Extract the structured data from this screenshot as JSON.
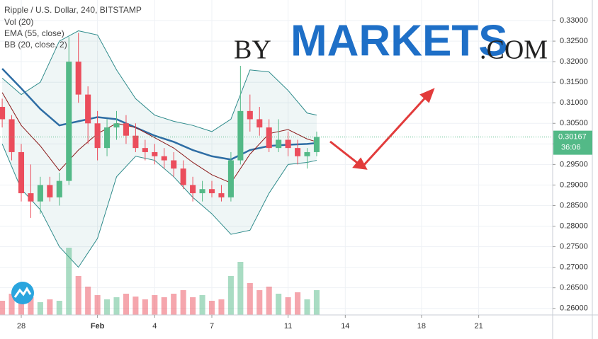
{
  "chart_data": {
    "type": "candlestick",
    "title": "Ripple / U.S. Dollar, 240, BITSTAMP",
    "indicators": [
      "Vol (20)",
      "EMA (55, close)",
      "BB (20, close, 2)"
    ],
    "watermark": {
      "prefix": "BY",
      "main": "MARKETS",
      "suffix": ".COM"
    },
    "xlim": [
      -1.115,
      27.88
    ],
    "ylim": [
      0.2584,
      0.335
    ],
    "vlim": [
      0,
      110
    ],
    "xticks": [
      {
        "value": 0,
        "label": "28"
      },
      {
        "value": 4,
        "label": "Feb"
      },
      {
        "value": 7,
        "label": "4"
      },
      {
        "value": 10,
        "label": "7"
      },
      {
        "value": 14,
        "label": "11"
      },
      {
        "value": 17,
        "label": "14"
      },
      {
        "value": 21,
        "label": "18"
      },
      {
        "value": 24,
        "label": "21"
      }
    ],
    "yticks": [
      {
        "value": 0.26,
        "label": "0.26000"
      },
      {
        "value": 0.265,
        "label": "0.26500"
      },
      {
        "value": 0.27,
        "label": "0.27000"
      },
      {
        "value": 0.275,
        "label": "0.27500"
      },
      {
        "value": 0.28,
        "label": "0.28000"
      },
      {
        "value": 0.285,
        "label": "0.28500"
      },
      {
        "value": 0.29,
        "label": "0.29000"
      },
      {
        "value": 0.295,
        "label": "0.29500"
      },
      {
        "value": 0.3,
        "label": "0.30000"
      },
      {
        "value": 0.305,
        "label": "0.30500"
      },
      {
        "value": 0.31,
        "label": "0.31000"
      },
      {
        "value": 0.315,
        "label": "0.31500"
      },
      {
        "value": 0.32,
        "label": "0.32000"
      },
      {
        "value": 0.325,
        "label": "0.32500"
      },
      {
        "value": 0.33,
        "label": "0.33000"
      }
    ],
    "grid": true,
    "up_color": "#53b987",
    "down_color": "#eb4d5c",
    "candles": {
      "x": [
        -1,
        -0.5,
        0,
        0.5,
        1,
        1.5,
        2,
        2.5,
        3,
        3.5,
        4,
        4.5,
        5,
        5.5,
        6,
        6.5,
        7,
        7.5,
        8,
        8.5,
        9,
        9.5,
        10,
        10.5,
        11,
        11.5,
        12,
        12.5,
        13,
        13.5,
        14,
        14.5,
        15,
        15.5
      ],
      "open": [
        0.309,
        0.306,
        0.298,
        0.288,
        0.286,
        0.29,
        0.287,
        0.291,
        0.32,
        0.312,
        0.305,
        0.299,
        0.304,
        0.305,
        0.302,
        0.299,
        0.298,
        0.297,
        0.296,
        0.294,
        0.29,
        0.288,
        0.289,
        0.288,
        0.287,
        0.296,
        0.308,
        0.306,
        0.304,
        0.299,
        0.301,
        0.299,
        0.297,
        0.298
      ],
      "high": [
        0.311,
        0.307,
        0.3,
        0.295,
        0.292,
        0.292,
        0.293,
        0.326,
        0.327,
        0.314,
        0.308,
        0.306,
        0.308,
        0.307,
        0.305,
        0.301,
        0.3,
        0.299,
        0.298,
        0.296,
        0.292,
        0.291,
        0.291,
        0.29,
        0.298,
        0.319,
        0.312,
        0.309,
        0.306,
        0.306,
        0.303,
        0.301,
        0.299,
        0.303
      ],
      "low": [
        0.304,
        0.296,
        0.286,
        0.282,
        0.283,
        0.286,
        0.285,
        0.29,
        0.31,
        0.3,
        0.296,
        0.297,
        0.301,
        0.3,
        0.298,
        0.296,
        0.295,
        0.294,
        0.292,
        0.289,
        0.286,
        0.286,
        0.287,
        0.286,
        0.286,
        0.295,
        0.303,
        0.302,
        0.298,
        0.298,
        0.297,
        0.295,
        0.294,
        0.297
      ],
      "close": [
        0.306,
        0.298,
        0.288,
        0.286,
        0.29,
        0.287,
        0.291,
        0.32,
        0.312,
        0.305,
        0.299,
        0.304,
        0.305,
        0.302,
        0.299,
        0.298,
        0.297,
        0.296,
        0.294,
        0.29,
        0.288,
        0.289,
        0.288,
        0.287,
        0.296,
        0.308,
        0.306,
        0.304,
        0.299,
        0.301,
        0.299,
        0.297,
        0.298,
        0.3017
      ],
      "volume": [
        20,
        30,
        35,
        25,
        18,
        22,
        20,
        95,
        55,
        40,
        28,
        22,
        25,
        30,
        26,
        22,
        28,
        25,
        30,
        35,
        25,
        28,
        20,
        22,
        55,
        75,
        45,
        35,
        40,
        30,
        25,
        32,
        22,
        35
      ]
    },
    "lines": [
      {
        "name": "EMA (55, close)",
        "color": "#2e6da4",
        "width": 2.5,
        "x": [
          -1,
          0,
          1,
          2,
          3,
          4,
          5,
          6,
          7,
          8,
          9,
          10,
          11,
          12,
          13,
          14,
          15,
          15.5
        ],
        "values": [
          0.3183,
          0.3135,
          0.3085,
          0.3045,
          0.3055,
          0.3065,
          0.306,
          0.304,
          0.302,
          0.3005,
          0.2985,
          0.297,
          0.2962,
          0.2985,
          0.2995,
          0.2998,
          0.3,
          0.3002
        ]
      },
      {
        "name": "BB (20, close, 2)",
        "color": "#8b1a1a",
        "width": 1,
        "x": [
          -1,
          0,
          1,
          2,
          3,
          4,
          5,
          6,
          7,
          8,
          9,
          10,
          11,
          12,
          13,
          14,
          15,
          15.5
        ],
        "values": [
          0.3125,
          0.3045,
          0.2995,
          0.2935,
          0.2985,
          0.3025,
          0.305,
          0.304,
          0.3015,
          0.299,
          0.2955,
          0.2925,
          0.2905,
          0.2975,
          0.3025,
          0.3035,
          0.3012,
          0.3005
        ]
      }
    ],
    "band": {
      "color": "#2e8b8b",
      "x": [
        -1,
        0,
        1,
        2,
        3,
        4,
        5,
        6,
        7,
        8,
        9,
        10,
        11,
        12,
        13,
        14,
        15,
        15.5
      ],
      "upper": [
        0.316,
        0.312,
        0.315,
        0.325,
        0.3275,
        0.3265,
        0.318,
        0.311,
        0.307,
        0.3055,
        0.3045,
        0.303,
        0.306,
        0.318,
        0.3175,
        0.313,
        0.3075,
        0.307
      ],
      "lower": [
        0.3,
        0.289,
        0.284,
        0.275,
        0.27,
        0.277,
        0.292,
        0.297,
        0.296,
        0.292,
        0.287,
        0.283,
        0.278,
        0.279,
        0.288,
        0.295,
        0.2955,
        0.296
      ]
    },
    "last_price": 0.30167,
    "countdown": "36:06"
  }
}
